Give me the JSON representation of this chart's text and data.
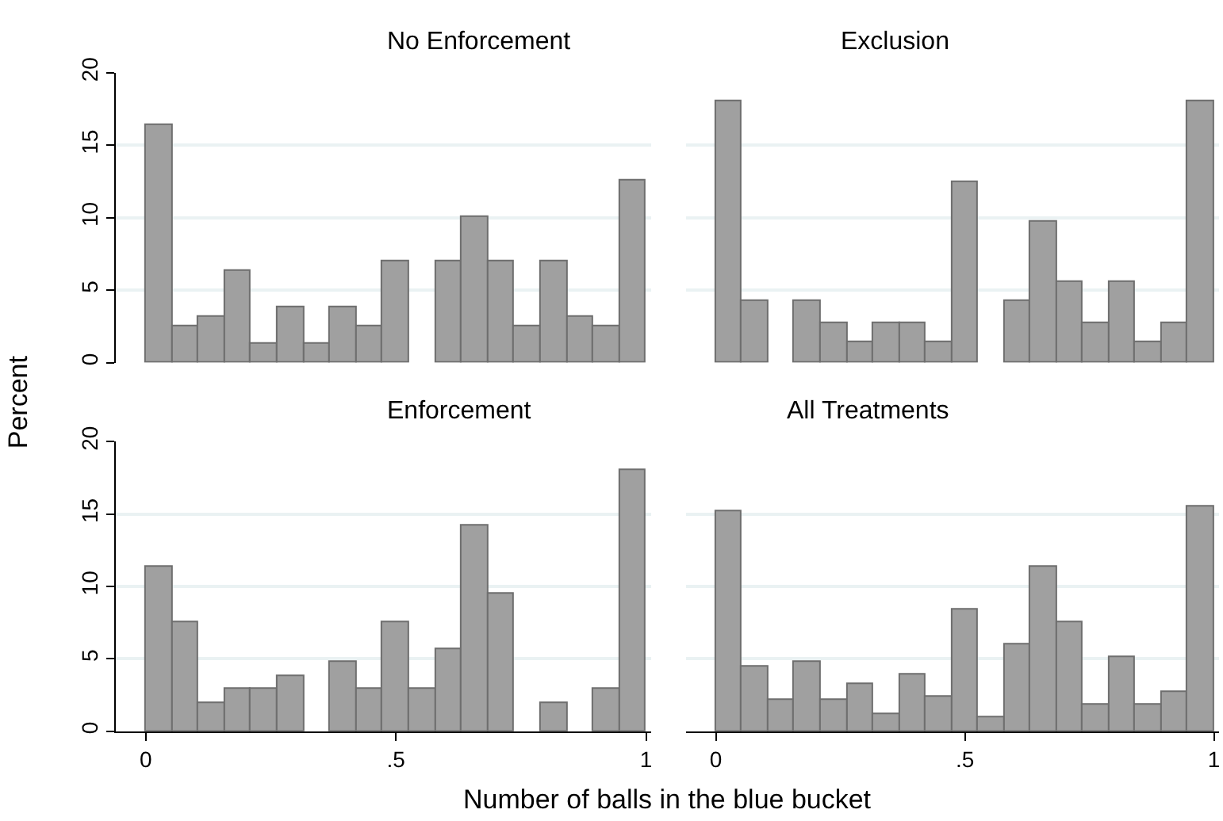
{
  "chart_data": [
    {
      "type": "histogram",
      "title": "No Enforcement",
      "ylabel": "Percent",
      "bins": [
        0,
        0.0526,
        0.1053,
        0.1579,
        0.2105,
        0.2632,
        0.3158,
        0.3684,
        0.4211,
        0.4737,
        0.5263,
        0.5789,
        0.6316,
        0.6842,
        0.7368,
        0.7895,
        0.8421,
        0.8947,
        0.9474,
        1
      ],
      "values": [
        16.4,
        2.5,
        3.2,
        6.3,
        1.3,
        3.8,
        1.3,
        3.8,
        2.5,
        7.0,
        null,
        7.0,
        10.1,
        7.0,
        2.5,
        7.0,
        3.2,
        2.5,
        12.6
      ],
      "color": "#a0a0a0",
      "xlim": [
        -0.06,
        1.01
      ],
      "ylim": [
        0,
        20
      ],
      "yticks": [
        0,
        5,
        10,
        15,
        20
      ],
      "grid": "y",
      "tick_labels": "y"
    },
    {
      "type": "histogram",
      "title": "Exclusion",
      "bins": [
        0,
        0.0526,
        0.1053,
        0.1579,
        0.2105,
        0.2632,
        0.3158,
        0.3684,
        0.4211,
        0.4737,
        0.5263,
        0.5789,
        0.6316,
        0.6842,
        0.7368,
        0.7895,
        0.8421,
        0.8947,
        0.9474,
        1
      ],
      "values": [
        18.0,
        4.2,
        null,
        4.2,
        2.7,
        1.4,
        2.7,
        2.7,
        1.4,
        12.5,
        null,
        4.2,
        9.7,
        5.6,
        2.7,
        5.6,
        1.4,
        2.7,
        18.0
      ],
      "color": "#a0a0a0",
      "xlim": [
        -0.06,
        1.01
      ],
      "ylim": [
        0,
        20
      ],
      "yticks": [
        0,
        5,
        10,
        15,
        20
      ],
      "grid": "y",
      "tick_labels": false
    },
    {
      "type": "histogram",
      "title": "Enforcement",
      "xlabel": "Number of balls in the blue bucket",
      "bins": [
        0,
        0.0526,
        0.1053,
        0.1579,
        0.2105,
        0.2632,
        0.3158,
        0.3684,
        0.4211,
        0.4737,
        0.5263,
        0.5789,
        0.6316,
        0.6842,
        0.7368,
        0.7895,
        0.8421,
        0.8947,
        0.9474,
        1
      ],
      "values": [
        11.4,
        7.5,
        1.9,
        2.9,
        2.9,
        3.8,
        null,
        4.8,
        2.9,
        7.5,
        2.9,
        5.7,
        14.2,
        9.5,
        null,
        1.9,
        null,
        2.9,
        18.0
      ],
      "color": "#a0a0a0",
      "xlim": [
        -0.06,
        1.01
      ],
      "ylim": [
        0,
        20
      ],
      "yticks": [
        0,
        5,
        10,
        15,
        20
      ],
      "xticks": [
        0,
        {
          "value": 0.5,
          "label": ".5"
        },
        1
      ],
      "grid": "y"
    },
    {
      "type": "histogram",
      "title": "All Treatments",
      "bins": [
        0,
        0.0526,
        0.1053,
        0.1579,
        0.2105,
        0.2632,
        0.3158,
        0.3684,
        0.4211,
        0.4737,
        0.5263,
        0.5789,
        0.6316,
        0.6842,
        0.7368,
        0.7895,
        0.8421,
        0.8947,
        0.9474,
        1
      ],
      "values": [
        15.2,
        4.5,
        2.1,
        4.8,
        2.1,
        3.3,
        1.2,
        3.9,
        2.4,
        8.4,
        0.9,
        6.0,
        11.4,
        7.5,
        1.8,
        5.1,
        1.8,
        2.7,
        15.5
      ],
      "color": "#a0a0a0",
      "xlim": [
        -0.06,
        1.01
      ],
      "ylim": [
        0,
        20
      ],
      "yticks": [
        0,
        5,
        10,
        15,
        20
      ],
      "xticks": [
        0,
        {
          "value": 0.5,
          "label": ".5"
        },
        1
      ],
      "grid": "y",
      "tick_labels": "x"
    }
  ]
}
